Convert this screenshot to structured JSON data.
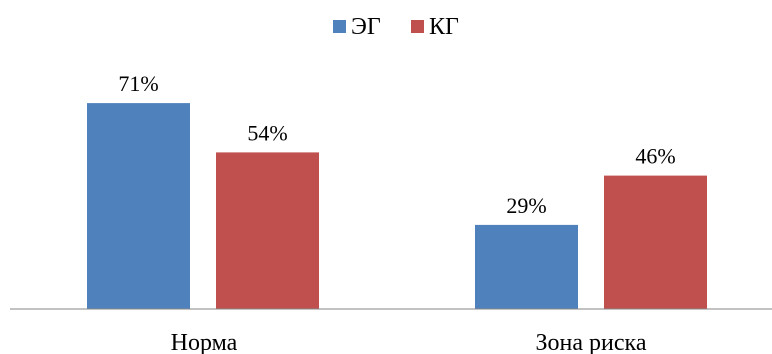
{
  "chart_data": {
    "type": "bar",
    "title": "",
    "xlabel": "",
    "ylabel": "",
    "categories": [
      "Норма",
      "Зона риска"
    ],
    "series": [
      {
        "name": "ЭГ",
        "values": [
          71,
          29
        ],
        "labels": [
          "71%",
          "29%"
        ],
        "color": "#4F81BD"
      },
      {
        "name": "КГ",
        "values": [
          54,
          46
        ],
        "labels": [
          "54%",
          "46%"
        ],
        "color": "#C0504D"
      }
    ],
    "ylim": [
      0,
      100
    ],
    "grid": false,
    "legend_position": "top-center",
    "axis_color": "#868686"
  }
}
